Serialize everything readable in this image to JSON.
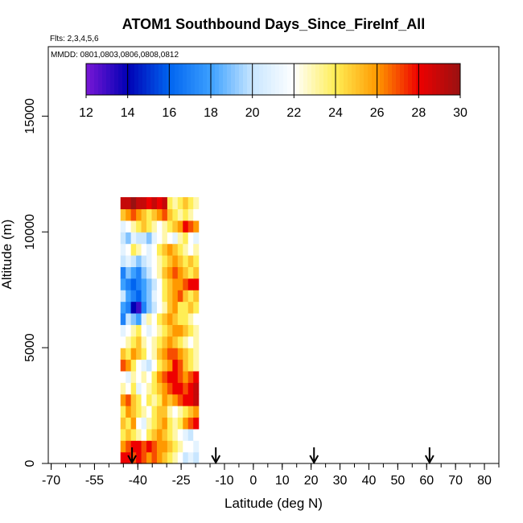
{
  "chart_data": {
    "type": "heatmap",
    "title": "ATOM1 Southbound Days_Since_FireInf_All",
    "flights_note": "Flts: 2,3,4,5,6",
    "dates_note": "MMDD: 0801,0803,0806,0808,0812",
    "xlabel": "Latitude (deg N)",
    "ylabel": "Altitude (m)",
    "xlim": [
      -71,
      85
    ],
    "ylim": [
      0,
      18000
    ],
    "x_ticks": [
      -70,
      -55,
      -40,
      -25,
      -10,
      0,
      10,
      20,
      30,
      40,
      50,
      60,
      70,
      80
    ],
    "x_tick_labels": [
      "-70",
      "-55",
      "-40",
      "-25",
      "-10",
      "0",
      "10",
      "20",
      "30",
      "40",
      "50",
      "60",
      "70",
      "80"
    ],
    "y_ticks": [
      0,
      5000,
      10000,
      15000
    ],
    "y_tick_labels": [
      "0",
      "5000",
      "10000",
      "15000"
    ],
    "colorbar": {
      "min": 12,
      "max": 30,
      "ticks": [
        12,
        14,
        16,
        18,
        20,
        22,
        24,
        26,
        28,
        30
      ],
      "tick_labels": [
        "12",
        "14",
        "16",
        "18",
        "20",
        "22",
        "24",
        "26",
        "28",
        "30"
      ],
      "colors": [
        "#7a17d6",
        "#0000b4",
        "#0064f0",
        "#3ca0ff",
        "#c8e6ff",
        "#ffffff",
        "#ffee55",
        "#ff9900",
        "#ee0000",
        "#991111"
      ]
    },
    "arrow_latitudes": [
      -42,
      -13,
      21,
      61
    ],
    "data_region": {
      "lat_min": -46,
      "lat_max": -19,
      "alt_min": 0,
      "alt_max": 12000
    },
    "layers": [
      {
        "alt": 250,
        "values": [
          28,
          28,
          27,
          28,
          27,
          26,
          27,
          26,
          25,
          24,
          23,
          22,
          20,
          21,
          20
        ]
      },
      {
        "alt": 750,
        "values": [
          26,
          27,
          28,
          28,
          27,
          28,
          27,
          26,
          26,
          25,
          24,
          23,
          22,
          22,
          21
        ]
      },
      {
        "alt": 1250,
        "values": [
          24,
          25,
          24,
          23,
          22,
          24,
          25,
          26,
          25,
          24,
          23,
          22,
          21,
          20,
          22
        ]
      },
      {
        "alt": 1750,
        "values": [
          25,
          24,
          26,
          22,
          21,
          23,
          24,
          25,
          26,
          24,
          23,
          24,
          26,
          27,
          28
        ]
      },
      {
        "alt": 2250,
        "values": [
          24,
          26,
          25,
          24,
          23,
          22,
          24,
          25,
          25,
          23,
          22,
          23,
          24,
          25,
          26
        ]
      },
      {
        "alt": 2750,
        "values": [
          26,
          27,
          25,
          24,
          22,
          24,
          23,
          24,
          26,
          25,
          26,
          27,
          28,
          28,
          29
        ]
      },
      {
        "alt": 3250,
        "values": [
          23,
          22,
          24,
          21,
          22,
          23,
          24,
          25,
          26,
          27,
          28,
          28,
          27,
          28,
          29
        ]
      },
      {
        "alt": 3750,
        "values": [
          22,
          21,
          23,
          22,
          23,
          22,
          24,
          26,
          27,
          28,
          28,
          27,
          26,
          27,
          28
        ]
      },
      {
        "alt": 4250,
        "values": [
          27,
          26,
          24,
          22,
          21,
          20,
          22,
          24,
          25,
          26,
          28,
          27,
          25,
          24,
          23
        ]
      },
      {
        "alt": 4750,
        "values": [
          25,
          24,
          26,
          25,
          24,
          22,
          23,
          25,
          26,
          27,
          27,
          26,
          25,
          24,
          23
        ]
      },
      {
        "alt": 5250,
        "values": [
          22,
          23,
          24,
          25,
          23,
          22,
          23,
          24,
          25,
          26,
          25,
          24,
          23,
          22,
          23
        ]
      },
      {
        "alt": 5750,
        "values": [
          21,
          22,
          23,
          24,
          22,
          21,
          22,
          23,
          24,
          25,
          26,
          26,
          25,
          24,
          23
        ]
      },
      {
        "alt": 6250,
        "values": [
          17,
          20,
          19,
          18,
          21,
          23,
          22,
          24,
          25,
          26,
          25,
          24,
          24,
          23,
          22
        ]
      },
      {
        "alt": 6750,
        "values": [
          18,
          17,
          14,
          13,
          17,
          19,
          20,
          22,
          23,
          25,
          26,
          24,
          24,
          25,
          24
        ]
      },
      {
        "alt": 7250,
        "values": [
          20,
          18,
          17,
          16,
          18,
          19,
          21,
          22,
          24,
          25,
          26,
          27,
          25,
          24,
          25
        ]
      },
      {
        "alt": 7750,
        "values": [
          18,
          17,
          16,
          17,
          18,
          19,
          20,
          22,
          24,
          25,
          26,
          26,
          27,
          28,
          28
        ]
      },
      {
        "alt": 8250,
        "values": [
          17,
          19,
          18,
          17,
          19,
          20,
          22,
          23,
          25,
          26,
          27,
          26,
          25,
          24,
          25
        ]
      },
      {
        "alt": 8750,
        "values": [
          20,
          21,
          20,
          19,
          20,
          21,
          22,
          23,
          24,
          25,
          26,
          25,
          24,
          25,
          24
        ]
      },
      {
        "alt": 9250,
        "values": [
          21,
          22,
          24,
          23,
          22,
          21,
          22,
          24,
          25,
          26,
          25,
          24,
          23,
          22,
          23
        ]
      },
      {
        "alt": 9750,
        "values": [
          20,
          19,
          21,
          20,
          20,
          19,
          21,
          22,
          23,
          22,
          21,
          23,
          24,
          22,
          21
        ]
      },
      {
        "alt": 10250,
        "values": [
          21,
          22,
          23,
          24,
          25,
          24,
          23,
          22,
          23,
          24,
          25,
          26,
          28,
          27,
          26
        ]
      },
      {
        "alt": 10750,
        "values": [
          25,
          26,
          27,
          26,
          25,
          24,
          25,
          26,
          27,
          25,
          24,
          23,
          24,
          23,
          22
        ]
      },
      {
        "alt": 11250,
        "values": [
          29,
          29,
          30,
          29,
          29,
          28,
          29,
          28,
          29,
          24,
          23,
          24,
          25,
          24,
          23
        ]
      }
    ]
  }
}
